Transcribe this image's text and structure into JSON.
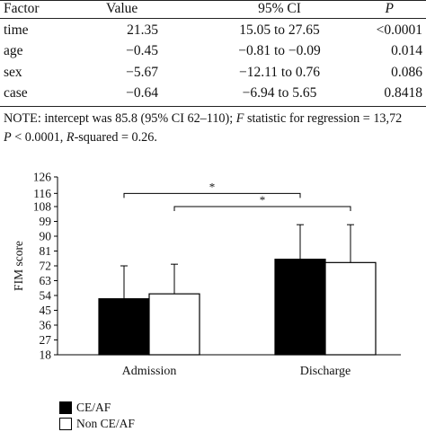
{
  "table": {
    "headers": [
      "Factor",
      "Value",
      "95% CI",
      "P"
    ],
    "rows": [
      {
        "factor": "time",
        "value": "21.35",
        "ci": "15.05 to 27.65",
        "p": "<0.0001"
      },
      {
        "factor": "age",
        "value": "−0.45",
        "ci": "−0.81 to −0.09",
        "p": "0.014"
      },
      {
        "factor": "sex",
        "value": "−5.67",
        "ci": "−12.11 to 0.76",
        "p": "0.086"
      },
      {
        "factor": "case",
        "value": "−0.64",
        "ci": "−6.94 to 5.65",
        "p": "0.8418"
      }
    ],
    "note_prefix": "NOTE: intercept was 85.8 (95% CI 62–110); ",
    "note_f_label": "F",
    "note_f_text": " statistic for regression = 13,72",
    "note_p_label": "P",
    "note_p_text": " < 0.0001, ",
    "note_r_label": "R",
    "note_r_text": "-squared = 0.26."
  },
  "chart_data": {
    "type": "bar",
    "categories": [
      "Admission",
      "Discharge"
    ],
    "series": [
      {
        "name": "CE/AF",
        "color": "#000000",
        "values": [
          52,
          76
        ],
        "error_upper": [
          72,
          97
        ]
      },
      {
        "name": "Non CE/AF",
        "color": "#ffffff",
        "values": [
          55,
          74
        ],
        "error_upper": [
          73,
          97
        ]
      }
    ],
    "ylabel": "FIM score",
    "xlabel": "",
    "ylim": [
      18,
      126
    ],
    "yticks": [
      18,
      27,
      36,
      45,
      54,
      63,
      72,
      81,
      90,
      99,
      108,
      116,
      126
    ],
    "grid": false,
    "legend_position": "bottom-left",
    "annotations": [
      {
        "text": "*",
        "from": "Admission CE/AF",
        "to": "Discharge CE/AF",
        "y": 116
      },
      {
        "text": "*",
        "from": "Admission Non CE/AF",
        "to": "Discharge Non CE/AF",
        "y": 108
      }
    ]
  }
}
